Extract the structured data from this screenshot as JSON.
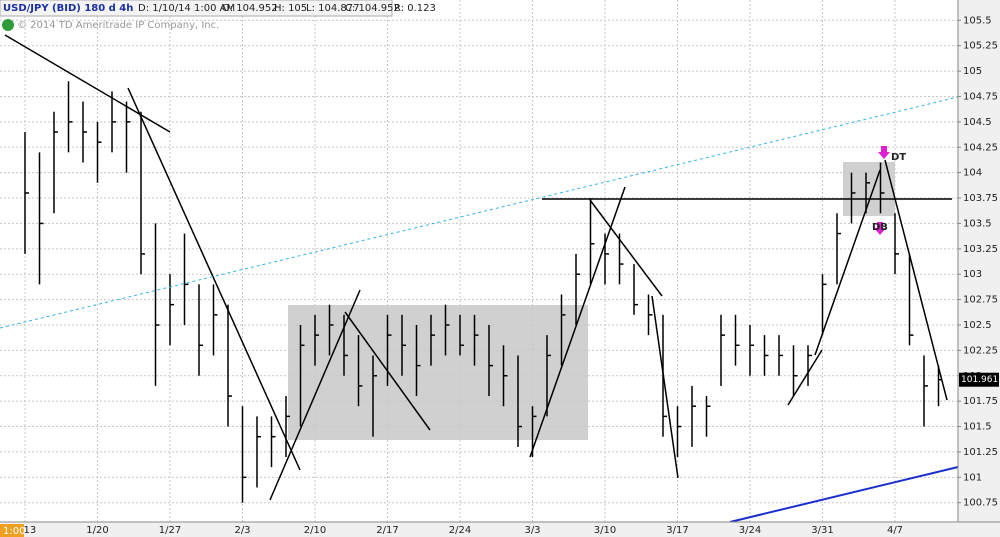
{
  "chart_data": {
    "type": "ohlc",
    "header": {
      "symbol": "USD/JPY (BID) 180 d 4h",
      "date": "D: 1/10/14 1:00 AM",
      "open": "O: 104.952",
      "high": "H: 105",
      "low": "L: 104.877",
      "close": "C: 104.952",
      "range": "R: 0.123"
    },
    "copyright": "© 2014 TD Ameritrade IP Company, Inc.",
    "time_badge": "1:00",
    "annotations": [
      "DT",
      "DB"
    ],
    "categories": [
      "1/13",
      null,
      null,
      null,
      null,
      "1/20",
      null,
      null,
      null,
      null,
      "1/27",
      null,
      null,
      null,
      null,
      "2/3",
      null,
      null,
      null,
      null,
      "2/10",
      null,
      null,
      null,
      null,
      "2/17",
      null,
      null,
      null,
      null,
      "2/24",
      null,
      null,
      null,
      null,
      "3/3",
      null,
      null,
      null,
      null,
      "3/10",
      null,
      null,
      null,
      null,
      "3/17",
      null,
      null,
      null,
      null,
      "3/24",
      null,
      null,
      null,
      null,
      "3/31",
      null,
      null,
      null,
      null,
      "4/7",
      null,
      null,
      null
    ],
    "series": [
      {
        "name": "High",
        "color": "#000000",
        "values": [
          104.4,
          104.2,
          104.6,
          104.9,
          104.7,
          104.5,
          104.8,
          104.7,
          104.6,
          103.5,
          103.0,
          103.4,
          102.9,
          102.9,
          102.7,
          101.7,
          101.6,
          101.6,
          101.8,
          102.5,
          102.6,
          102.7,
          102.6,
          102.4,
          102.2,
          102.6,
          102.6,
          102.5,
          102.6,
          102.7,
          102.6,
          102.6,
          102.5,
          102.3,
          102.2,
          101.7,
          102.4,
          102.8,
          103.2,
          103.75,
          103.4,
          103.4,
          103.1,
          102.8,
          102.6,
          101.7,
          101.9,
          101.8,
          102.6,
          102.6,
          102.5,
          102.4,
          102.4,
          102.3,
          102.3,
          103.0,
          103.6,
          104.0,
          104.0,
          104.1,
          103.6,
          103.2,
          102.2,
          102.1
        ]
      },
      {
        "name": "Low",
        "color": "#000000",
        "values": [
          103.2,
          102.9,
          103.6,
          104.2,
          104.1,
          103.9,
          104.2,
          104.0,
          103.0,
          101.9,
          102.3,
          102.5,
          102.0,
          102.2,
          101.5,
          100.75,
          100.9,
          101.1,
          101.2,
          101.5,
          102.1,
          102.2,
          102.0,
          101.7,
          101.4,
          101.9,
          102.0,
          101.8,
          102.1,
          102.2,
          102.2,
          102.1,
          101.8,
          101.7,
          101.3,
          101.2,
          101.6,
          102.1,
          102.5,
          102.9,
          102.9,
          102.9,
          102.6,
          102.4,
          101.4,
          101.2,
          101.3,
          101.4,
          101.9,
          102.1,
          102.0,
          102.0,
          102.0,
          101.8,
          101.9,
          102.4,
          102.9,
          103.5,
          103.6,
          103.6,
          103.0,
          102.3,
          101.5,
          101.7
        ]
      },
      {
        "name": "Close",
        "color": "#000000",
        "values": [
          103.8,
          103.5,
          104.4,
          104.5,
          104.4,
          104.3,
          104.5,
          104.5,
          103.2,
          102.5,
          102.7,
          102.9,
          102.3,
          102.6,
          101.8,
          101.0,
          101.4,
          101.4,
          101.6,
          102.3,
          102.4,
          102.5,
          102.2,
          101.9,
          102.0,
          102.4,
          102.3,
          102.1,
          102.4,
          102.5,
          102.3,
          102.4,
          102.1,
          102.0,
          101.5,
          101.6,
          102.2,
          102.6,
          103.0,
          103.3,
          103.2,
          103.1,
          102.7,
          102.6,
          101.6,
          101.5,
          101.7,
          101.7,
          102.4,
          102.3,
          102.3,
          102.2,
          102.2,
          102.0,
          102.2,
          102.9,
          103.4,
          103.8,
          103.9,
          103.8,
          103.2,
          102.4,
          101.9,
          101.961
        ]
      }
    ],
    "last_price": 101.961,
    "ylim": [
      100.56,
      105.7
    ],
    "yticks": [
      100.75,
      101,
      101.25,
      101.5,
      101.75,
      102,
      102.25,
      102.5,
      102.75,
      103,
      103.25,
      103.5,
      103.75,
      104,
      104.25,
      104.5,
      104.75,
      105,
      105.25,
      105.5
    ],
    "grid": true
  }
}
